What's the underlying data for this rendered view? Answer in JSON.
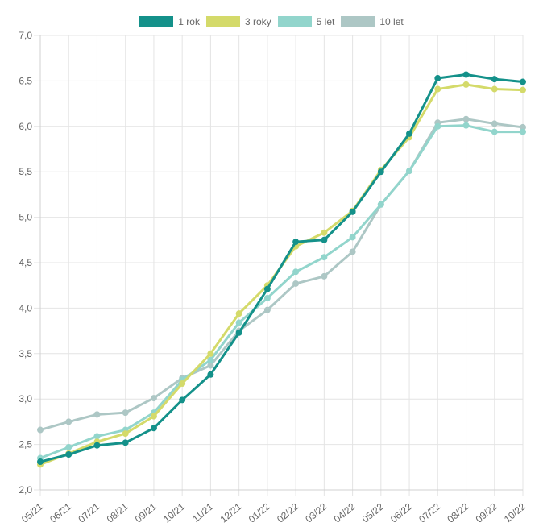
{
  "chart_data": {
    "type": "line",
    "title": "",
    "xlabel": "",
    "ylabel": "",
    "categories": [
      "05/21",
      "06/21",
      "07/21",
      "08/21",
      "09/21",
      "10/21",
      "11/21",
      "12/21",
      "01/22",
      "02/22",
      "03/22",
      "04/22",
      "05/22",
      "06/22",
      "07/22",
      "08/22",
      "09/22",
      "10/22"
    ],
    "ylim": [
      2.0,
      7.0
    ],
    "ytick_step": 0.5,
    "ytick_labels": [
      "2,0",
      "2,5",
      "3,0",
      "3,5",
      "4,0",
      "4,5",
      "5,0",
      "5,5",
      "6,0",
      "6,5",
      "7,0"
    ],
    "grid": true,
    "legend_position": "top",
    "series": [
      {
        "name": "1 rok",
        "color": "#14918a",
        "values": [
          2.31,
          2.39,
          2.49,
          2.52,
          2.68,
          2.99,
          3.27,
          3.73,
          4.21,
          4.73,
          4.75,
          5.06,
          5.5,
          5.92,
          6.53,
          6.57,
          6.52,
          6.49
        ]
      },
      {
        "name": "3 roky",
        "color": "#d4da6a",
        "values": [
          2.28,
          2.4,
          2.53,
          2.62,
          2.81,
          3.17,
          3.5,
          3.94,
          4.25,
          4.68,
          4.83,
          5.07,
          5.52,
          5.88,
          6.41,
          6.46,
          6.41,
          6.4
        ]
      },
      {
        "name": "5 let",
        "color": "#92d5cc",
        "values": [
          2.35,
          2.47,
          2.59,
          2.66,
          2.85,
          3.21,
          3.43,
          3.84,
          4.11,
          4.4,
          4.56,
          4.78,
          5.14,
          5.51,
          6.0,
          6.01,
          5.94,
          5.94
        ]
      },
      {
        "name": "10 let",
        "color": "#adc7c5",
        "values": [
          2.66,
          2.75,
          2.83,
          2.85,
          3.01,
          3.23,
          3.37,
          3.75,
          3.98,
          4.27,
          4.35,
          4.62,
          5.14,
          5.51,
          6.04,
          6.08,
          6.03,
          5.99
        ]
      }
    ]
  }
}
